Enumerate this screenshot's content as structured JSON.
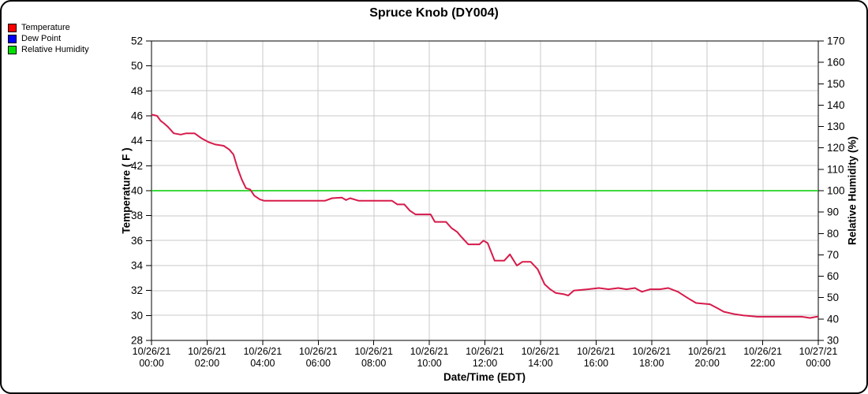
{
  "window": {
    "title": "Spruce Knob (DY004)"
  },
  "legend": {
    "items": [
      {
        "label": "Temperature",
        "color": "#ff0000"
      },
      {
        "label": "Dew Point",
        "color": "#0000ff"
      },
      {
        "label": "Relative Humidity",
        "color": "#00e000"
      }
    ]
  },
  "chart_data": {
    "type": "line",
    "title": "Spruce Knob (DY004)",
    "xlabel": "Date/Time (EDT)",
    "ylabel_left": "Temperature ( F )",
    "ylabel_right": "Relative Humidity (%)",
    "grid": true,
    "legend_position": "top-left",
    "colors": {
      "grid": "#c8c8c8",
      "frame": "#000000",
      "temperature": "#d81b4a",
      "dew_point": "#0000ff",
      "relative_humidity": "#00cc00"
    },
    "x_axis": {
      "range_hours": [
        0,
        24
      ],
      "tick_hours": [
        0,
        2,
        4,
        6,
        8,
        10,
        12,
        14,
        16,
        18,
        20,
        22,
        24
      ],
      "tick_labels": [
        {
          "date": "10/26/21",
          "time": "00:00"
        },
        {
          "date": "10/26/21",
          "time": "02:00"
        },
        {
          "date": "10/26/21",
          "time": "04:00"
        },
        {
          "date": "10/26/21",
          "time": "06:00"
        },
        {
          "date": "10/26/21",
          "time": "08:00"
        },
        {
          "date": "10/26/21",
          "time": "10:00"
        },
        {
          "date": "10/26/21",
          "time": "12:00"
        },
        {
          "date": "10/26/21",
          "time": "14:00"
        },
        {
          "date": "10/26/21",
          "time": "16:00"
        },
        {
          "date": "10/26/21",
          "time": "18:00"
        },
        {
          "date": "10/26/21",
          "time": "20:00"
        },
        {
          "date": "10/26/21",
          "time": "22:00"
        },
        {
          "date": "10/27/21",
          "time": "00:00"
        }
      ]
    },
    "y_left": {
      "label": "Temperature ( F )",
      "min": 28,
      "max": 52,
      "ticks": [
        52,
        50,
        48,
        46,
        44,
        42,
        40,
        38,
        36,
        34,
        32,
        30,
        28
      ]
    },
    "y_right": {
      "label": "Relative Humidity (%)",
      "min": 30,
      "max": 170,
      "ticks": [
        170,
        160,
        150,
        140,
        130,
        120,
        110,
        100,
        90,
        80,
        70,
        60,
        50,
        40,
        30
      ]
    },
    "series": [
      {
        "name": "Relative Humidity",
        "axis": "right",
        "color": "#00cc00",
        "width": 1.6,
        "points": [
          [
            0,
            100
          ],
          [
            24,
            100
          ]
        ]
      },
      {
        "name": "Dew Point",
        "axis": "left",
        "color": "#0000ff",
        "width": 1.4,
        "points_ref": 2,
        "note": "RH is 100% all day so dew point equals temperature; its line is hidden beneath the temperature trace"
      },
      {
        "name": "Temperature",
        "axis": "left",
        "color": "#d81b4a",
        "width": 2,
        "points": [
          [
            0,
            46.1
          ],
          [
            0.2,
            46.0
          ],
          [
            0.33,
            45.6
          ],
          [
            0.45,
            45.4
          ],
          [
            0.6,
            45.1
          ],
          [
            0.8,
            44.6
          ],
          [
            1.05,
            44.5
          ],
          [
            1.25,
            44.6
          ],
          [
            1.55,
            44.6
          ],
          [
            1.8,
            44.2
          ],
          [
            2.05,
            43.9
          ],
          [
            2.3,
            43.7
          ],
          [
            2.6,
            43.6
          ],
          [
            2.8,
            43.3
          ],
          [
            2.95,
            42.9
          ],
          [
            3.1,
            41.8
          ],
          [
            3.25,
            40.9
          ],
          [
            3.4,
            40.2
          ],
          [
            3.55,
            40.1
          ],
          [
            3.7,
            39.6
          ],
          [
            3.9,
            39.3
          ],
          [
            4.05,
            39.2
          ],
          [
            6.25,
            39.2
          ],
          [
            6.5,
            39.4
          ],
          [
            6.85,
            39.45
          ],
          [
            7.0,
            39.25
          ],
          [
            7.15,
            39.4
          ],
          [
            7.45,
            39.2
          ],
          [
            8.65,
            39.2
          ],
          [
            8.85,
            38.9
          ],
          [
            9.1,
            38.9
          ],
          [
            9.3,
            38.4
          ],
          [
            9.5,
            38.1
          ],
          [
            10.05,
            38.1
          ],
          [
            10.2,
            37.5
          ],
          [
            10.6,
            37.5
          ],
          [
            10.8,
            37.0
          ],
          [
            11.0,
            36.7
          ],
          [
            11.15,
            36.3
          ],
          [
            11.4,
            35.7
          ],
          [
            11.8,
            35.7
          ],
          [
            11.95,
            36.0
          ],
          [
            12.1,
            35.8
          ],
          [
            12.35,
            34.4
          ],
          [
            12.7,
            34.4
          ],
          [
            12.9,
            34.9
          ],
          [
            13.15,
            34.0
          ],
          [
            13.35,
            34.3
          ],
          [
            13.65,
            34.3
          ],
          [
            13.9,
            33.7
          ],
          [
            14.15,
            32.5
          ],
          [
            14.35,
            32.1
          ],
          [
            14.55,
            31.8
          ],
          [
            14.85,
            31.7
          ],
          [
            15.0,
            31.6
          ],
          [
            15.2,
            32.0
          ],
          [
            15.7,
            32.1
          ],
          [
            16.1,
            32.2
          ],
          [
            16.45,
            32.1
          ],
          [
            16.8,
            32.2
          ],
          [
            17.1,
            32.1
          ],
          [
            17.4,
            32.2
          ],
          [
            17.65,
            31.9
          ],
          [
            17.95,
            32.1
          ],
          [
            18.3,
            32.1
          ],
          [
            18.6,
            32.2
          ],
          [
            18.95,
            31.9
          ],
          [
            19.3,
            31.4
          ],
          [
            19.6,
            31.0
          ],
          [
            20.1,
            30.9
          ],
          [
            20.35,
            30.6
          ],
          [
            20.6,
            30.3
          ],
          [
            21.0,
            30.1
          ],
          [
            21.3,
            30.0
          ],
          [
            21.8,
            29.9
          ],
          [
            23.4,
            29.9
          ],
          [
            23.7,
            29.8
          ],
          [
            23.95,
            29.9
          ],
          [
            24,
            29.9
          ]
        ]
      }
    ]
  }
}
